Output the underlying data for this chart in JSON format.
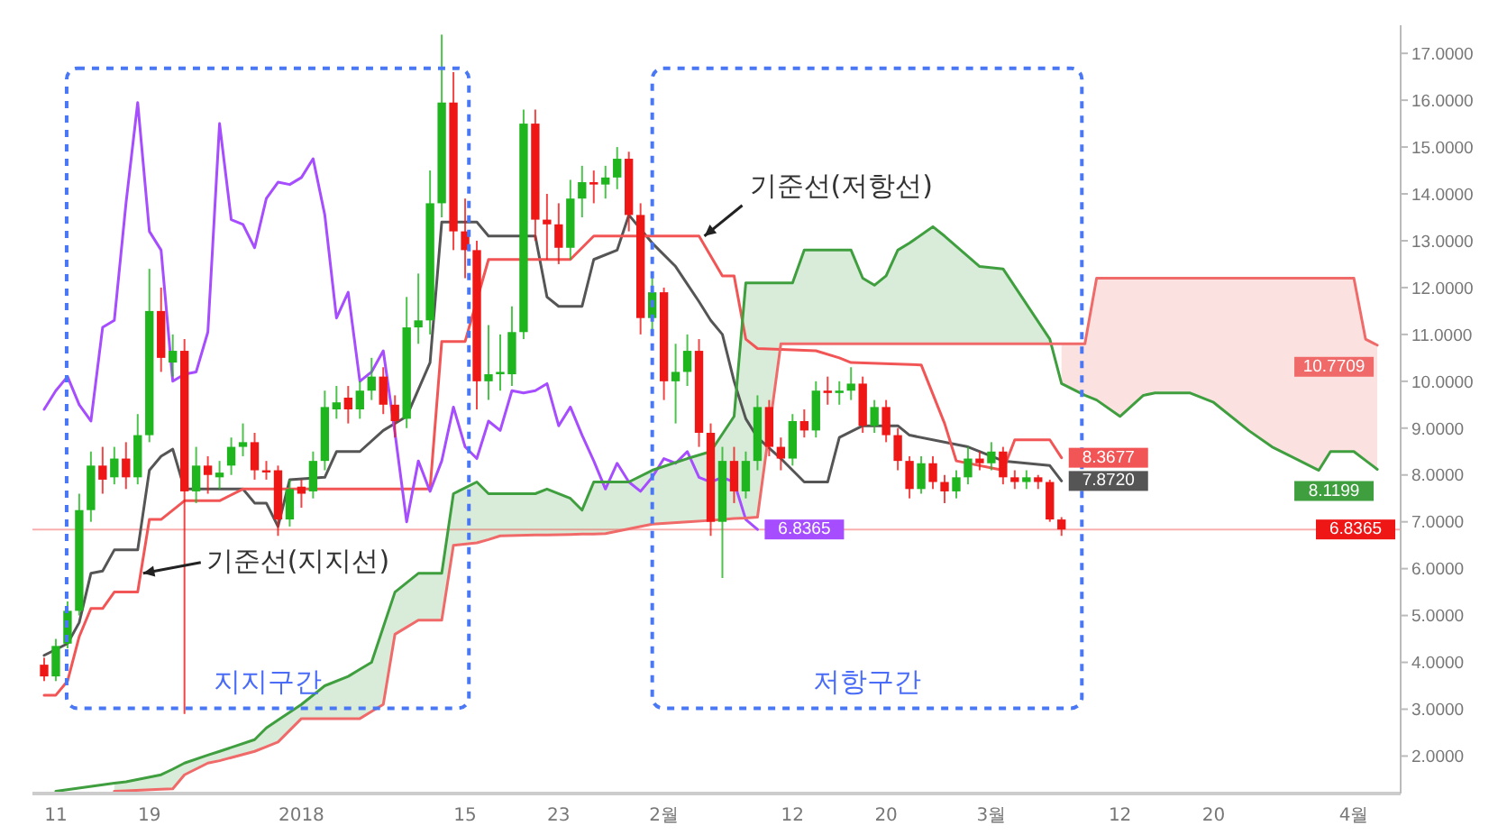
{
  "chart_data": {
    "type": "candlestick",
    "x": [
      "2017-12-10",
      "2017-12-11",
      "2017-12-12",
      "2017-12-13",
      "2017-12-14",
      "2017-12-15",
      "2017-12-16",
      "2017-12-17",
      "2017-12-18",
      "2017-12-19",
      "2017-12-20",
      "2017-12-21",
      "2017-12-22",
      "2017-12-23",
      "2017-12-24",
      "2017-12-25",
      "2017-12-26",
      "2017-12-27",
      "2017-12-28",
      "2017-12-29",
      "2017-12-30",
      "2017-12-31",
      "2018-01-01",
      "2018-01-02",
      "2018-01-03",
      "2018-01-04",
      "2018-01-05",
      "2018-01-06",
      "2018-01-07",
      "2018-01-08",
      "2018-01-09",
      "2018-01-10",
      "2018-01-11",
      "2018-01-12",
      "2018-01-13",
      "2018-01-14",
      "2018-01-15",
      "2018-01-16",
      "2018-01-17",
      "2018-01-18",
      "2018-01-19",
      "2018-01-20",
      "2018-01-21",
      "2018-01-22",
      "2018-01-23",
      "2018-01-24",
      "2018-01-25",
      "2018-01-26",
      "2018-01-27",
      "2018-01-28",
      "2018-01-29",
      "2018-01-30",
      "2018-01-31",
      "2018-02-01",
      "2018-02-02",
      "2018-02-03",
      "2018-02-04",
      "2018-02-05",
      "2018-02-06",
      "2018-02-07",
      "2018-02-08",
      "2018-02-09",
      "2018-02-10",
      "2018-02-11",
      "2018-02-12",
      "2018-02-13",
      "2018-02-14",
      "2018-02-15",
      "2018-02-16",
      "2018-02-17",
      "2018-02-18",
      "2018-02-19",
      "2018-02-20",
      "2018-02-21",
      "2018-02-22",
      "2018-02-23",
      "2018-02-24",
      "2018-02-25",
      "2018-02-26",
      "2018-02-27",
      "2018-02-28",
      "2018-03-01",
      "2018-03-02",
      "2018-03-03",
      "2018-03-04",
      "2018-03-05",
      "2018-03-06",
      "2018-03-07"
    ],
    "ohlc": [
      [
        3.95,
        4.1,
        3.6,
        3.7
      ],
      [
        3.7,
        4.5,
        3.6,
        4.35
      ],
      [
        4.4,
        5.3,
        4.3,
        5.1
      ],
      [
        5.1,
        7.6,
        5.0,
        7.25
      ],
      [
        7.25,
        8.5,
        7.0,
        8.2
      ],
      [
        8.2,
        8.6,
        7.6,
        7.9
      ],
      [
        7.95,
        8.6,
        7.8,
        8.35
      ],
      [
        8.35,
        8.7,
        7.7,
        7.95
      ],
      [
        7.95,
        9.3,
        7.8,
        8.85
      ],
      [
        8.85,
        12.4,
        8.7,
        11.5
      ],
      [
        11.5,
        12.0,
        10.2,
        10.5
      ],
      [
        10.4,
        11.0,
        10.1,
        10.65
      ],
      [
        10.65,
        10.9,
        2.9,
        7.65
      ],
      [
        7.65,
        8.6,
        7.4,
        8.2
      ],
      [
        8.2,
        8.4,
        7.6,
        8.0
      ],
      [
        7.95,
        8.3,
        7.7,
        8.05
      ],
      [
        8.2,
        8.8,
        8.0,
        8.6
      ],
      [
        8.6,
        9.1,
        8.4,
        8.7
      ],
      [
        8.7,
        8.9,
        7.9,
        8.1
      ],
      [
        8.1,
        8.3,
        7.9,
        8.08
      ],
      [
        8.1,
        8.2,
        6.7,
        7.05
      ],
      [
        7.05,
        7.9,
        6.9,
        7.7
      ],
      [
        7.75,
        7.9,
        7.3,
        7.6
      ],
      [
        7.65,
        8.5,
        7.5,
        8.3
      ],
      [
        8.3,
        9.8,
        8.1,
        9.45
      ],
      [
        9.4,
        9.9,
        9.2,
        9.55
      ],
      [
        9.65,
        9.9,
        9.1,
        9.4
      ],
      [
        9.4,
        10.0,
        9.2,
        9.8
      ],
      [
        9.8,
        10.5,
        9.6,
        10.1
      ],
      [
        10.1,
        10.3,
        9.3,
        9.5
      ],
      [
        9.5,
        9.7,
        8.8,
        9.15
      ],
      [
        9.2,
        11.8,
        9.0,
        11.15
      ],
      [
        11.15,
        12.3,
        10.8,
        11.3
      ],
      [
        11.3,
        14.5,
        11.0,
        13.8
      ],
      [
        13.8,
        17.4,
        13.5,
        15.95
      ],
      [
        15.95,
        16.6,
        12.8,
        13.2
      ],
      [
        13.2,
        13.9,
        12.2,
        12.8
      ],
      [
        12.8,
        13.0,
        9.4,
        10.0
      ],
      [
        10.0,
        11.2,
        9.6,
        10.15
      ],
      [
        10.15,
        11.0,
        9.8,
        10.2
      ],
      [
        10.15,
        11.6,
        9.9,
        11.05
      ],
      [
        11.05,
        15.8,
        10.9,
        15.5
      ],
      [
        15.5,
        15.8,
        13.0,
        13.45
      ],
      [
        13.45,
        14.0,
        12.6,
        13.35
      ],
      [
        13.35,
        13.8,
        12.5,
        12.85
      ],
      [
        12.85,
        14.3,
        12.6,
        13.9
      ],
      [
        13.9,
        14.6,
        13.5,
        14.25
      ],
      [
        14.25,
        14.5,
        13.8,
        14.2
      ],
      [
        14.2,
        14.6,
        13.9,
        14.35
      ],
      [
        14.35,
        15.0,
        14.1,
        14.75
      ],
      [
        14.75,
        14.9,
        13.2,
        13.55
      ],
      [
        13.55,
        13.8,
        11.0,
        11.35
      ],
      [
        11.35,
        12.3,
        11.1,
        11.9
      ],
      [
        11.9,
        12.0,
        9.6,
        10.0
      ],
      [
        10.0,
        10.8,
        9.1,
        10.2
      ],
      [
        10.2,
        11.0,
        9.9,
        10.65
      ],
      [
        10.65,
        10.9,
        8.6,
        8.9
      ],
      [
        8.9,
        9.1,
        6.7,
        7.0
      ],
      [
        7.0,
        8.6,
        5.8,
        8.3
      ],
      [
        8.3,
        8.6,
        7.4,
        7.65
      ],
      [
        7.65,
        8.5,
        7.5,
        8.3
      ],
      [
        8.3,
        9.7,
        8.1,
        9.45
      ],
      [
        9.45,
        9.6,
        8.4,
        8.6
      ],
      [
        8.6,
        8.8,
        8.1,
        8.35
      ],
      [
        8.35,
        9.3,
        8.2,
        9.15
      ],
      [
        9.15,
        9.4,
        8.8,
        8.95
      ],
      [
        8.95,
        10.0,
        8.8,
        9.8
      ],
      [
        9.8,
        10.1,
        9.5,
        9.75
      ],
      [
        9.75,
        10.0,
        9.5,
        9.8
      ],
      [
        9.8,
        10.3,
        9.6,
        9.95
      ],
      [
        9.95,
        10.1,
        8.9,
        9.05
      ],
      [
        9.05,
        9.6,
        8.9,
        9.45
      ],
      [
        9.45,
        9.6,
        8.7,
        8.85
      ],
      [
        8.85,
        9.0,
        8.1,
        8.3
      ],
      [
        8.3,
        8.4,
        7.5,
        7.7
      ],
      [
        7.7,
        8.4,
        7.6,
        8.25
      ],
      [
        8.25,
        8.4,
        7.7,
        7.85
      ],
      [
        7.85,
        8.0,
        7.4,
        7.65
      ],
      [
        7.65,
        8.1,
        7.5,
        7.95
      ],
      [
        7.95,
        8.6,
        7.8,
        8.35
      ],
      [
        8.35,
        8.5,
        8.1,
        8.25
      ],
      [
        8.25,
        8.7,
        8.1,
        8.5
      ],
      [
        8.5,
        8.6,
        7.8,
        7.95
      ],
      [
        7.95,
        8.1,
        7.7,
        7.85
      ],
      [
        7.85,
        8.1,
        7.7,
        7.95
      ],
      [
        7.95,
        8.0,
        7.7,
        7.85
      ],
      [
        7.85,
        7.9,
        7.0,
        7.05
      ],
      [
        7.05,
        7.1,
        6.7,
        6.8365
      ]
    ],
    "colors": [
      "#ef1616",
      "#1fb51f",
      "#1fb51f",
      "#1fb51f",
      "#1fb51f",
      "#ef1616",
      "#1fb51f",
      "#ef1616",
      "#1fb51f",
      "#1fb51f",
      "#ef1616",
      "#1fb51f",
      "#ef1616",
      "#1fb51f",
      "#ef1616",
      "#1fb51f",
      "#1fb51f",
      "#1fb51f",
      "#ef1616",
      "#ef1616",
      "#ef1616",
      "#1fb51f",
      "#ef1616",
      "#1fb51f",
      "#1fb51f",
      "#1fb51f",
      "#ef1616",
      "#1fb51f",
      "#1fb51f",
      "#ef1616",
      "#ef1616",
      "#1fb51f",
      "#1fb51f",
      "#1fb51f",
      "#1fb51f",
      "#ef1616",
      "#ef1616",
      "#ef1616",
      "#1fb51f",
      "#1fb51f",
      "#1fb51f",
      "#1fb51f",
      "#ef1616",
      "#ef1616",
      "#ef1616",
      "#1fb51f",
      "#1fb51f",
      "#ef1616",
      "#1fb51f",
      "#1fb51f",
      "#ef1616",
      "#ef1616",
      "#1fb51f",
      "#ef1616",
      "#1fb51f",
      "#1fb51f",
      "#ef1616",
      "#ef1616",
      "#1fb51f",
      "#ef1616",
      "#1fb51f",
      "#1fb51f",
      "#ef1616",
      "#ef1616",
      "#1fb51f",
      "#ef1616",
      "#1fb51f",
      "#ef1616",
      "#1fb51f",
      "#1fb51f",
      "#ef1616",
      "#1fb51f",
      "#ef1616",
      "#ef1616",
      "#ef1616",
      "#1fb51f",
      "#ef1616",
      "#ef1616",
      "#1fb51f",
      "#1fb51f",
      "#ef1616",
      "#1fb51f",
      "#ef1616",
      "#ef1616",
      "#1fb51f",
      "#ef1616",
      "#ef1616",
      "#ef1616"
    ],
    "series": [
      {
        "type": "line",
        "color": "#555555",
        "x": [
          "2017-12-10",
          "2017-12-12",
          "2017-12-13",
          "2017-12-14",
          "2017-12-15",
          "2017-12-16",
          "2017-12-18",
          "2017-12-19",
          "2017-12-20",
          "2017-12-21",
          "2017-12-22",
          "2017-12-27",
          "2017-12-28",
          "2017-12-29",
          "2017-12-30",
          "2017-12-31",
          "2018-01-03",
          "2018-01-04",
          "2018-01-06",
          "2018-01-08",
          "2018-01-10",
          "2018-01-12",
          "2018-01-13",
          "2018-01-16",
          "2018-01-17",
          "2018-01-21",
          "2018-01-22",
          "2018-01-23",
          "2018-01-25",
          "2018-01-26",
          "2018-01-28",
          "2018-01-29",
          "2018-01-31",
          "2018-02-02",
          "2018-02-04",
          "2018-02-05",
          "2018-02-06",
          "2018-02-07",
          "2018-02-08",
          "2018-02-09",
          "2018-02-11",
          "2018-02-13",
          "2018-02-15",
          "2018-02-16",
          "2018-02-18",
          "2018-02-21",
          "2018-02-22",
          "2018-02-27",
          "2018-03-01",
          "2018-03-02",
          "2018-03-06",
          "2018-03-07"
        ],
        "values": [
          4.15,
          4.4,
          4.85,
          5.9,
          5.95,
          6.4,
          6.4,
          8.1,
          8.4,
          8.55,
          7.7,
          7.7,
          7.4,
          7.4,
          6.9,
          7.9,
          7.95,
          8.5,
          8.5,
          8.95,
          9.25,
          10.4,
          13.4,
          13.4,
          13.1,
          13.1,
          11.8,
          11.6,
          11.6,
          12.6,
          12.8,
          13.55,
          12.95,
          12.45,
          11.7,
          11.3,
          11.0,
          10.0,
          9.2,
          8.8,
          8.35,
          7.85,
          7.85,
          8.8,
          9.05,
          9.05,
          8.85,
          8.6,
          8.4,
          8.3,
          8.2,
          7.872
        ],
        "value_labels": [
          null,
          null,
          null,
          null,
          null,
          null,
          null,
          null,
          null,
          null,
          null,
          null,
          null,
          null,
          null,
          null,
          null,
          null,
          null,
          null,
          null,
          null,
          null,
          null,
          null,
          null,
          null,
          null,
          null,
          null,
          null,
          null,
          null,
          null,
          null,
          null,
          null,
          null,
          null,
          null,
          null,
          null,
          null,
          null,
          null,
          null,
          null,
          null,
          null,
          null,
          null,
          "7.8720"
        ]
      },
      {
        "type": "line",
        "color": "#f25555",
        "x": [
          "2017-12-10",
          "2017-12-11",
          "2017-12-12",
          "2017-12-13",
          "2017-12-14",
          "2017-12-15",
          "2017-12-16",
          "2017-12-18",
          "2017-12-19",
          "2017-12-20",
          "2017-12-22",
          "2017-12-25",
          "2017-12-27",
          "2018-01-12",
          "2018-01-13",
          "2018-01-15",
          "2018-01-17",
          "2018-01-24",
          "2018-01-26",
          "2018-02-04",
          "2018-02-06",
          "2018-02-07",
          "2018-02-08",
          "2018-02-09",
          "2018-02-14",
          "2018-02-16",
          "2018-02-17",
          "2018-02-23",
          "2018-02-25",
          "2018-02-26",
          "2018-03-02",
          "2018-03-03",
          "2018-03-06",
          "2018-03-07"
        ],
        "values": [
          3.3,
          3.3,
          3.6,
          4.55,
          5.15,
          5.15,
          5.5,
          5.5,
          7.05,
          7.05,
          7.45,
          7.45,
          7.7,
          7.7,
          10.85,
          10.85,
          12.6,
          12.6,
          13.1,
          13.1,
          12.25,
          12.25,
          10.9,
          10.7,
          10.65,
          10.5,
          10.4,
          10.35,
          9.1,
          8.3,
          8.1,
          8.75,
          8.75,
          8.3677
        ],
        "value_labels": [
          null,
          null,
          null,
          null,
          null,
          null,
          null,
          null,
          null,
          null,
          null,
          null,
          null,
          null,
          null,
          null,
          null,
          null,
          null,
          null,
          null,
          null,
          null,
          null,
          null,
          null,
          null,
          null,
          null,
          null,
          null,
          null,
          null,
          "8.3677"
        ]
      },
      {
        "type": "line",
        "color": "#a64dff",
        "x": [
          "2017-12-10",
          "2017-12-11",
          "2017-12-12",
          "2017-12-13",
          "2017-12-14",
          "2017-12-15",
          "2017-12-16",
          "2017-12-17",
          "2017-12-18",
          "2017-12-19",
          "2017-12-20",
          "2017-12-21",
          "2017-12-22",
          "2017-12-23",
          "2017-12-24",
          "2017-12-25",
          "2017-12-26",
          "2017-12-27",
          "2017-12-28",
          "2017-12-29",
          "2017-12-30",
          "2017-12-31",
          "2018-01-01",
          "2018-01-02",
          "2018-01-03",
          "2018-01-04",
          "2018-01-05",
          "2018-01-06",
          "2018-01-07",
          "2018-01-08",
          "2018-01-09",
          "2018-01-10",
          "2018-01-11",
          "2018-01-12",
          "2018-01-13",
          "2018-01-14",
          "2018-01-15",
          "2018-01-16",
          "2018-01-17",
          "2018-01-18",
          "2018-01-19",
          "2018-01-20",
          "2018-01-21",
          "2018-01-22",
          "2018-01-23",
          "2018-01-24",
          "2018-01-25",
          "2018-01-26",
          "2018-01-27",
          "2018-01-28",
          "2018-01-29",
          "2018-01-30",
          "2018-01-31",
          "2018-02-01",
          "2018-02-02",
          "2018-02-03",
          "2018-02-04",
          "2018-02-05",
          "2018-02-06",
          "2018-02-07",
          "2018-02-08",
          "2018-02-09"
        ],
        "values": [
          9.4,
          9.8,
          10.1,
          9.5,
          9.15,
          11.15,
          11.3,
          13.8,
          15.95,
          13.2,
          12.8,
          10.0,
          10.15,
          10.2,
          11.05,
          15.5,
          13.45,
          13.35,
          12.85,
          13.9,
          14.25,
          14.2,
          14.35,
          14.75,
          13.55,
          11.35,
          11.9,
          10.0,
          10.2,
          10.65,
          8.9,
          7.0,
          8.3,
          7.65,
          8.3,
          9.45,
          8.6,
          8.35,
          9.15,
          8.95,
          9.8,
          9.75,
          9.8,
          9.95,
          9.05,
          9.45,
          8.85,
          8.3,
          7.7,
          8.25,
          7.85,
          7.65,
          7.95,
          8.35,
          8.25,
          8.5,
          7.95,
          7.85,
          7.95,
          7.85,
          7.05,
          6.8365
        ],
        "value_labels": [
          null,
          null,
          null,
          null,
          null,
          null,
          null,
          null,
          null,
          null,
          null,
          null,
          null,
          null,
          null,
          null,
          null,
          null,
          null,
          null,
          null,
          null,
          null,
          null,
          null,
          null,
          null,
          null,
          null,
          null,
          null,
          null,
          null,
          null,
          null,
          null,
          null,
          null,
          null,
          null,
          null,
          null,
          null,
          null,
          null,
          null,
          null,
          null,
          null,
          null,
          null,
          null,
          null,
          null,
          null,
          null,
          null,
          null,
          null,
          null,
          null,
          "6.8365"
        ]
      },
      {
        "type": "line",
        "color": "#3f9f3f",
        "x": [
          "2017-12-11",
          "2017-12-16",
          "2017-12-17",
          "2017-12-20",
          "2017-12-21",
          "2017-12-22",
          "2017-12-24",
          "2017-12-25",
          "2017-12-28",
          "2017-12-29",
          "2017-12-30",
          "2018-01-01",
          "2018-01-03",
          "2018-01-05",
          "2018-01-06",
          "2018-01-07",
          "2018-01-08",
          "2018-01-09",
          "2018-01-11",
          "2018-01-13",
          "2018-01-14",
          "2018-01-16",
          "2018-01-17",
          "2018-01-18",
          "2018-01-21",
          "2018-01-22",
          "2018-01-24",
          "2018-01-25",
          "2018-01-26",
          "2018-01-27",
          "2018-01-29",
          "2018-01-31",
          "2018-02-03",
          "2018-02-05",
          "2018-02-07",
          "2018-02-08",
          "2018-02-09",
          "2018-02-11",
          "2018-02-12",
          "2018-02-13",
          "2018-02-17",
          "2018-02-18",
          "2018-02-19",
          "2018-02-20",
          "2018-02-21",
          "2018-02-22",
          "2018-02-24",
          "2018-02-25",
          "2018-02-28",
          "2018-03-02",
          "2018-03-06",
          "2018-03-07",
          "2018-03-09",
          "2018-03-10",
          "2018-03-12",
          "2018-03-14",
          "2018-03-15",
          "2018-03-18",
          "2018-03-20",
          "2018-03-23",
          "2018-03-25",
          "2018-03-29",
          "2018-03-30",
          "2018-04-01",
          "2018-04-02",
          "2018-04-03"
        ],
        "values": [
          1.25,
          1.42,
          1.45,
          1.6,
          1.72,
          1.85,
          2.02,
          2.1,
          2.35,
          2.6,
          2.77,
          3.1,
          3.5,
          3.7,
          3.85,
          4.0,
          4.75,
          5.5,
          5.9,
          5.9,
          7.6,
          7.85,
          7.6,
          7.6,
          7.6,
          7.7,
          7.5,
          7.25,
          7.85,
          7.85,
          7.85,
          8.1,
          8.35,
          8.5,
          9.25,
          12.1,
          12.1,
          12.1,
          12.1,
          12.8,
          12.8,
          12.2,
          12.05,
          12.25,
          12.8,
          12.95,
          13.3,
          13.1,
          12.45,
          12.4,
          10.9,
          9.95,
          9.7,
          9.6,
          9.25,
          9.7,
          9.75,
          9.75,
          9.55,
          8.95,
          8.6,
          8.1,
          8.5,
          8.5,
          8.31,
          8.1199
        ],
        "lower": [
          null,
          1.25,
          1.26,
          1.29,
          1.3,
          1.6,
          1.85,
          1.9,
          2.1,
          2.2,
          2.3,
          2.8,
          2.8,
          2.8,
          2.8,
          2.95,
          3.1,
          4.6,
          4.9,
          4.9,
          6.5,
          6.55,
          6.62,
          6.7,
          6.72,
          6.72,
          6.73,
          6.74,
          6.74,
          6.75,
          6.85,
          6.95,
          7.0,
          7.03,
          7.07,
          7.08,
          7.1,
          10.8,
          10.8,
          10.8,
          10.8,
          10.8,
          10.8,
          10.8,
          10.8,
          10.8,
          10.8,
          10.8,
          10.8,
          10.8,
          10.8,
          null,
          null,
          null,
          null,
          null,
          null,
          null,
          null,
          null,
          null,
          null,
          null,
          null,
          null,
          null
        ],
        "upper": [
          null,
          1.42,
          1.45,
          1.6,
          1.72,
          1.85,
          2.02,
          2.1,
          2.35,
          2.6,
          2.77,
          3.1,
          3.5,
          3.7,
          3.85,
          4.0,
          4.75,
          5.5,
          5.9,
          5.9,
          7.6,
          7.85,
          7.6,
          7.6,
          7.6,
          7.7,
          7.5,
          7.25,
          7.85,
          7.85,
          7.85,
          8.1,
          8.35,
          8.5,
          9.25,
          12.1,
          12.1,
          12.1,
          12.1,
          12.8,
          12.8,
          12.2,
          12.05,
          12.25,
          12.8,
          12.95,
          13.3,
          13.1,
          12.45,
          12.4,
          10.9,
          null,
          null,
          null,
          null,
          null,
          null,
          null,
          null,
          null,
          null,
          null,
          null,
          null,
          null,
          null
        ],
        "value_labels": [
          null,
          null,
          null,
          null,
          null,
          null,
          null,
          null,
          null,
          null,
          null,
          null,
          null,
          null,
          null,
          null,
          null,
          null,
          null,
          null,
          null,
          null,
          null,
          null,
          null,
          null,
          null,
          null,
          null,
          null,
          null,
          null,
          null,
          null,
          null,
          null,
          null,
          null,
          null,
          null,
          null,
          null,
          null,
          null,
          null,
          null,
          null,
          null,
          null,
          null,
          null,
          null,
          null,
          null,
          null,
          null,
          null,
          null,
          null,
          null,
          null,
          null,
          null,
          null,
          null,
          "8.1199"
        ]
      },
      {
        "type": "line",
        "color": "#f06a6a",
        "x": [
          "2017-12-16",
          "2017-12-17",
          "2017-12-20",
          "2017-12-21",
          "2017-12-22",
          "2017-12-24",
          "2017-12-25",
          "2017-12-28",
          "2017-12-29",
          "2017-12-30",
          "2018-01-01",
          "2018-01-03",
          "2018-01-05",
          "2018-01-06",
          "2018-01-07",
          "2018-01-08",
          "2018-01-09",
          "2018-01-11",
          "2018-01-13",
          "2018-01-14",
          "2018-01-16",
          "2018-01-17",
          "2018-01-18",
          "2018-01-21",
          "2018-01-22",
          "2018-01-24",
          "2018-01-25",
          "2018-01-26",
          "2018-01-27",
          "2018-01-29",
          "2018-01-31",
          "2018-02-03",
          "2018-02-05",
          "2018-02-07",
          "2018-02-08",
          "2018-02-09",
          "2018-02-11",
          "2018-02-12",
          "2018-02-13",
          "2018-02-17",
          "2018-02-18",
          "2018-02-19",
          "2018-02-20",
          "2018-02-21",
          "2018-02-22",
          "2018-02-24",
          "2018-02-25",
          "2018-02-28",
          "2018-03-02",
          "2018-03-06",
          "2018-03-07",
          "2018-03-09",
          "2018-03-10",
          "2018-03-12",
          "2018-03-14",
          "2018-03-15",
          "2018-03-18",
          "2018-03-20",
          "2018-03-23",
          "2018-03-25",
          "2018-03-29",
          "2018-03-30",
          "2018-04-01",
          "2018-04-02",
          "2018-04-03"
        ],
        "values": [
          1.25,
          1.26,
          1.29,
          1.3,
          1.6,
          1.85,
          1.9,
          2.1,
          2.2,
          2.3,
          2.8,
          2.8,
          2.8,
          2.8,
          2.95,
          3.1,
          4.6,
          4.9,
          4.9,
          6.5,
          6.55,
          6.62,
          6.7,
          6.72,
          6.72,
          6.73,
          6.74,
          6.74,
          6.75,
          6.85,
          6.95,
          7.0,
          7.03,
          7.07,
          7.08,
          7.1,
          10.8,
          10.8,
          10.8,
          10.8,
          10.8,
          10.8,
          10.8,
          10.8,
          10.8,
          10.8,
          10.8,
          10.8,
          10.8,
          10.8,
          10.8,
          10.8,
          12.2,
          12.2,
          12.2,
          12.2,
          12.2,
          12.2,
          12.2,
          12.2,
          12.2,
          12.2,
          12.2,
          10.9,
          10.7709
        ],
        "lower": [
          null,
          null,
          null,
          null,
          null,
          null,
          null,
          null,
          null,
          null,
          null,
          null,
          null,
          null,
          null,
          null,
          null,
          null,
          null,
          null,
          null,
          null,
          null,
          null,
          null,
          null,
          null,
          null,
          null,
          null,
          null,
          null,
          null,
          null,
          null,
          null,
          null,
          null,
          null,
          null,
          null,
          null,
          null,
          null,
          null,
          null,
          null,
          null,
          null,
          null,
          9.95,
          9.7,
          9.6,
          9.25,
          9.7,
          9.75,
          9.75,
          9.55,
          8.95,
          8.6,
          8.1,
          8.5,
          8.5,
          8.31,
          8.1199
        ],
        "upper": [
          null,
          null,
          null,
          null,
          null,
          null,
          null,
          null,
          null,
          null,
          null,
          null,
          null,
          null,
          null,
          null,
          null,
          null,
          null,
          null,
          null,
          null,
          null,
          null,
          null,
          null,
          null,
          null,
          null,
          null,
          null,
          null,
          null,
          null,
          null,
          null,
          null,
          null,
          null,
          null,
          null,
          null,
          null,
          null,
          null,
          null,
          null,
          null,
          null,
          null,
          10.8,
          10.8,
          12.2,
          12.2,
          12.2,
          12.2,
          12.2,
          12.2,
          12.2,
          12.2,
          12.2,
          12.2,
          12.2,
          10.9,
          10.7709
        ],
        "value_labels": [
          null,
          null,
          null,
          null,
          null,
          null,
          null,
          null,
          null,
          null,
          null,
          null,
          null,
          null,
          null,
          null,
          null,
          null,
          null,
          null,
          null,
          null,
          null,
          null,
          null,
          null,
          null,
          null,
          null,
          null,
          null,
          null,
          null,
          null,
          null,
          null,
          null,
          null,
          null,
          null,
          null,
          null,
          null,
          null,
          null,
          null,
          null,
          null,
          null,
          null,
          null,
          null,
          null,
          null,
          null,
          null,
          null,
          null,
          null,
          null,
          null,
          null,
          null,
          null,
          "10.7709"
        ]
      }
    ],
    "xlim": [
      "2017-12-09",
      "2018-04-05"
    ],
    "xticks": [
      {
        "value": "2017-12-11",
        "label": "11"
      },
      {
        "value": "2017-12-19",
        "label": "19"
      },
      {
        "value": "2018-01-01",
        "label": "2018"
      },
      {
        "value": "2018-01-15",
        "label": "15"
      },
      {
        "value": "2018-01-23",
        "label": "23"
      },
      {
        "value": "2018-02-01",
        "label": "2월"
      },
      {
        "value": "2018-02-12",
        "label": "12"
      },
      {
        "value": "2018-02-20",
        "label": "20"
      },
      {
        "value": "2018-03-01",
        "label": "3월"
      },
      {
        "value": "2018-03-12",
        "label": "12"
      },
      {
        "value": "2018-03-20",
        "label": "20"
      },
      {
        "value": "2018-04-01",
        "label": "4월"
      }
    ],
    "ylim": [
      1.2,
      17.6
    ],
    "yticks": [
      {
        "value": 2,
        "label": "2.0000"
      },
      {
        "value": 3,
        "label": "3.0000"
      },
      {
        "value": 4,
        "label": "4.0000"
      },
      {
        "value": 5,
        "label": "5.0000"
      },
      {
        "value": 6,
        "label": "6.0000"
      },
      {
        "value": 7,
        "label": "7.0000"
      },
      {
        "value": 8,
        "label": "8.0000"
      },
      {
        "value": 9,
        "label": "9.0000"
      },
      {
        "value": 10,
        "label": "10.0000"
      },
      {
        "value": 11,
        "label": "11.0000"
      },
      {
        "value": 12,
        "label": "12.0000"
      },
      {
        "value": 13,
        "label": "13.0000"
      },
      {
        "value": 14,
        "label": "14.0000"
      },
      {
        "value": 15,
        "label": "15.0000"
      },
      {
        "value": 16,
        "label": "16.0000"
      },
      {
        "value": 17,
        "label": "17.0000"
      }
    ],
    "ref_lines": [
      {
        "axis": "y",
        "value": 6.8365,
        "label": "6.8365",
        "color": "#ef1616"
      }
    ],
    "annotations": [
      {
        "text": "기준선(지지선)",
        "x": "2017-12-18",
        "y": 5.9
      },
      {
        "text": "기준선(저항선)",
        "x": "2018-02-04",
        "y": 13.1
      },
      "지지구간",
      "저항구간"
    ]
  }
}
